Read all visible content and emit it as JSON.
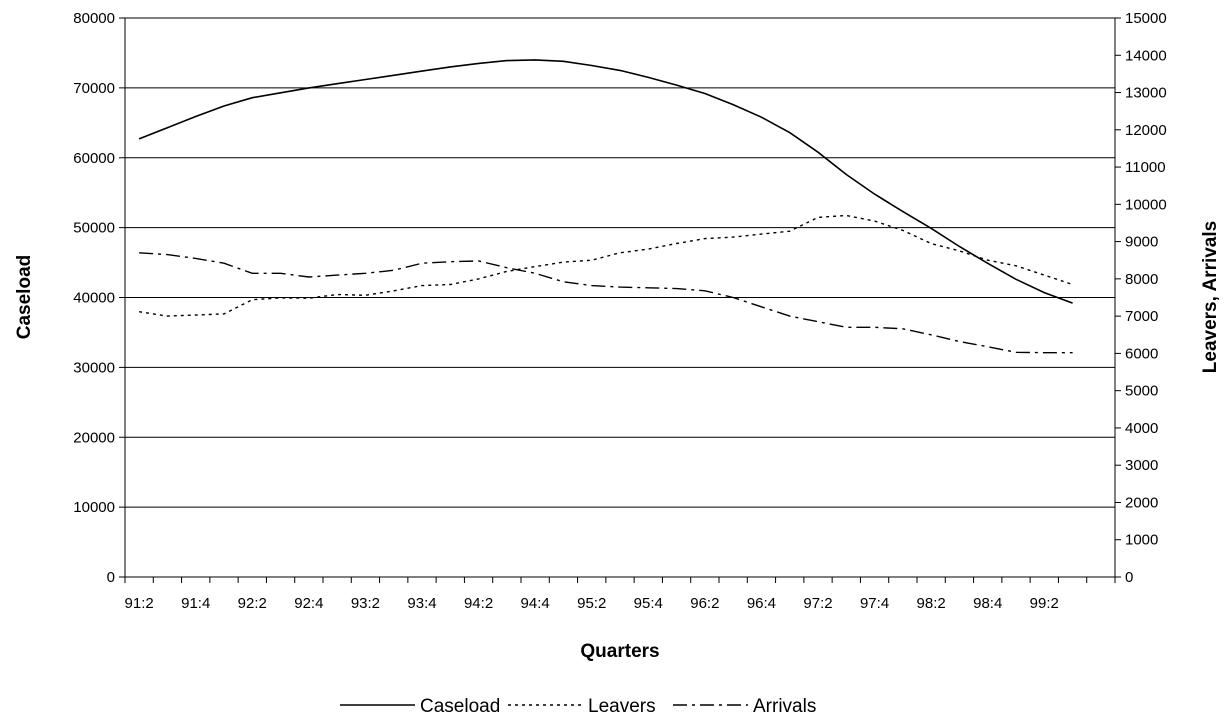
{
  "chart_data": {
    "type": "line",
    "xlabel": "Quarters",
    "ylabel": "Caseload",
    "y2label": "Leavers, Arrivals",
    "ylim": [
      0,
      80000
    ],
    "y2lim": [
      0,
      15000
    ],
    "yticks": [
      "0",
      "10000",
      "20000",
      "30000",
      "40000",
      "50000",
      "60000",
      "70000",
      "80000"
    ],
    "y2ticks": [
      "0",
      "1000",
      "2000",
      "3000",
      "4000",
      "5000",
      "6000",
      "7000",
      "8000",
      "9000",
      "10000",
      "11000",
      "12000",
      "13000",
      "14000",
      "15000"
    ],
    "x": [
      "91:2",
      "91:3",
      "91:4",
      "92:1",
      "92:2",
      "92:3",
      "92:4",
      "93:1",
      "93:2",
      "93:3",
      "93:4",
      "94:1",
      "94:2",
      "94:3",
      "94:4",
      "95:1",
      "95:2",
      "95:3",
      "95:4",
      "96:1",
      "96:2",
      "96:3",
      "96:4",
      "97:1",
      "97:2",
      "97:3",
      "97:4",
      "98:1",
      "98:2",
      "98:3",
      "98:4",
      "99:1",
      "99:2",
      "99:3",
      "99:4"
    ],
    "x_tick_labels": [
      "91:2",
      "91:4",
      "92:2",
      "92:4",
      "93:2",
      "93:4",
      "94:2",
      "94:4",
      "95:2",
      "95:4",
      "96:2",
      "96:4",
      "97:2",
      "97:4",
      "98:2",
      "98:4",
      "99:2"
    ],
    "grid": "horizontal",
    "legend_position": "bottom",
    "series": [
      {
        "name": "Caseload",
        "axis": "left",
        "style": "solid",
        "values": [
          62700,
          64300,
          65900,
          67400,
          68600,
          69300,
          70000,
          70600,
          71200,
          71800,
          72400,
          73000,
          73500,
          73900,
          74000,
          73800,
          73200,
          72500,
          71500,
          70400,
          69200,
          67600,
          65800,
          63600,
          60800,
          57600,
          54800,
          52300,
          49900,
          47300,
          44900,
          42600,
          40700,
          39200,
          null
        ]
      },
      {
        "name": "Leavers",
        "axis": "right",
        "style": "dotted",
        "values": [
          7120,
          7000,
          7030,
          7060,
          7440,
          7490,
          7480,
          7580,
          7560,
          7680,
          7820,
          7850,
          8000,
          8200,
          8330,
          8450,
          8500,
          8700,
          8800,
          8950,
          9080,
          9120,
          9200,
          9280,
          9650,
          9700,
          9550,
          9300,
          8950,
          8750,
          8500,
          8350,
          8100,
          7850,
          null
        ]
      },
      {
        "name": "Arrivals",
        "axis": "right",
        "style": "dash-dot",
        "values": [
          8700,
          8650,
          8550,
          8420,
          8150,
          8150,
          8050,
          8100,
          8150,
          8230,
          8420,
          8460,
          8480,
          8300,
          8150,
          7920,
          7820,
          7780,
          7760,
          7740,
          7680,
          7500,
          7250,
          7000,
          6850,
          6700,
          6700,
          6660,
          6500,
          6320,
          6180,
          6030,
          6020,
          6020,
          null
        ]
      }
    ]
  }
}
